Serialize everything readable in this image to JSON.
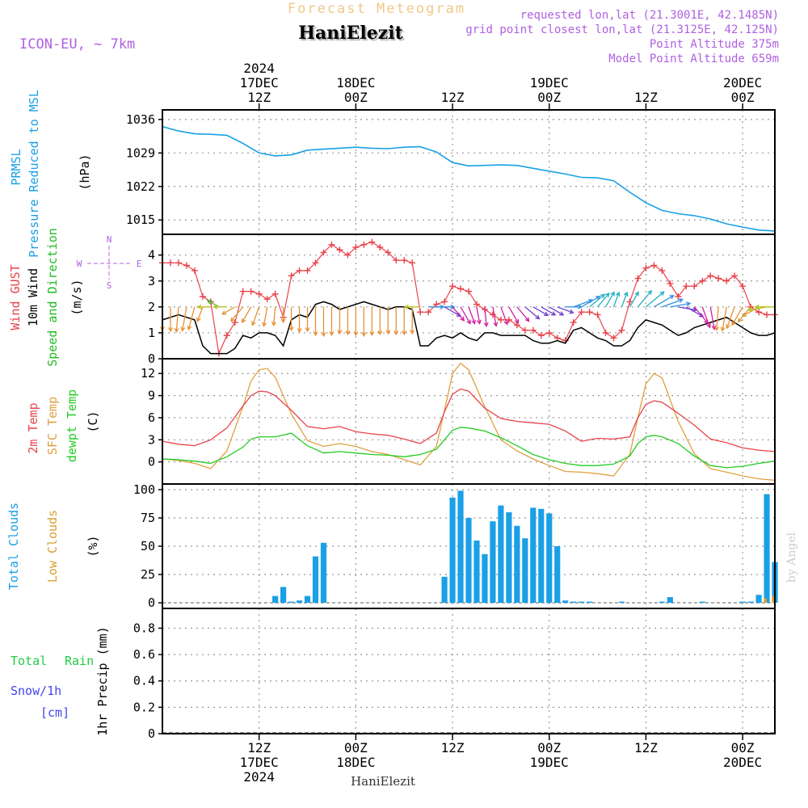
{
  "header": {
    "product": "Forecast Meteogram",
    "station": "HaniElezit",
    "model": "ICON-EU, ~ 7km",
    "requested": "requested lon,lat (21.3001E, 42.1485N)",
    "gridpoint": "grid point closest lon,lat (21.3125E, 42.125N)",
    "point_alt": "Point Altitude 375m",
    "model_alt": "Model Point Altitude 659m",
    "footer_station": "HaniElezit",
    "watermark": "by Angel"
  },
  "colors": {
    "pressure": "#1aa0e6",
    "gust": "#e8434b",
    "wind": "#000000",
    "wind_label": "#22bb22",
    "t2m": "#e8434b",
    "tsfc": "#e0a040",
    "dewpt": "#22cc22",
    "total_clouds": "#1aa0e6",
    "low_clouds": "#d9a030",
    "title": "#f0c888",
    "meta": "#b060e0",
    "rain": "#22cc44",
    "snow": "#4444ee"
  },
  "time_axis": {
    "top_labels": [
      {
        "h": 12,
        "lines": [
          "2024",
          "17DEC",
          "12Z"
        ]
      },
      {
        "h": 24,
        "lines": [
          "18DEC",
          "00Z"
        ]
      },
      {
        "h": 36,
        "lines": [
          "12Z"
        ]
      },
      {
        "h": 48,
        "lines": [
          "19DEC",
          "00Z"
        ]
      },
      {
        "h": 60,
        "lines": [
          "12Z"
        ]
      },
      {
        "h": 72,
        "lines": [
          "20DEC",
          "00Z"
        ]
      }
    ],
    "bottom_labels": [
      {
        "h": 12,
        "lines": [
          "12Z",
          "17DEC",
          "2024"
        ]
      },
      {
        "h": 24,
        "lines": [
          "00Z",
          "18DEC"
        ]
      },
      {
        "h": 36,
        "lines": [
          "12Z"
        ]
      },
      {
        "h": 48,
        "lines": [
          "00Z",
          "19DEC"
        ]
      },
      {
        "h": 60,
        "lines": [
          "12Z"
        ]
      },
      {
        "h": 72,
        "lines": [
          "00Z",
          "20DEC"
        ]
      }
    ]
  },
  "panels": {
    "pressure": {
      "labels": [
        "PRMSL",
        "Pressure Reduced to MSL",
        "(hPa)"
      ],
      "ticks": [
        "1036",
        "1029",
        "1022",
        "1015"
      ]
    },
    "wind": {
      "labels": [
        "Wind GUST",
        "10m Wind",
        "Speed and Direction",
        "(m/s)"
      ],
      "ticks": [
        "0",
        "1",
        "2",
        "3",
        "4"
      ],
      "compass": [
        "N",
        "W",
        "E",
        "S"
      ]
    },
    "temp": {
      "labels": [
        "2m Temp",
        "SFC Temp",
        "dewpt Temp",
        "(C)"
      ],
      "ticks": [
        "0",
        "3",
        "6",
        "9",
        "12"
      ]
    },
    "clouds": {
      "labels": [
        "Total Clouds",
        "Low Clouds",
        "(%)"
      ],
      "ticks": [
        "0",
        "25",
        "50",
        "75",
        "100"
      ]
    },
    "precip": {
      "labels": [
        "Total",
        "Rain",
        "Snow/1h",
        "[cm]",
        "1hr Precip (mm)"
      ],
      "ticks": [
        "0",
        "0.2",
        "0.4",
        "0.6",
        "0.8"
      ]
    }
  },
  "chart_data": [
    {
      "type": "line",
      "title": "Pressure Reduced to MSL",
      "ylabel": "hPa",
      "x_hours": [
        0,
        2,
        4,
        6,
        8,
        10,
        12,
        14,
        16,
        18,
        20,
        22,
        24,
        26,
        28,
        30,
        32,
        34,
        36,
        38,
        40,
        42,
        44,
        46,
        48,
        50,
        52,
        54,
        56,
        58,
        60,
        62,
        64,
        66,
        68,
        70,
        72,
        74,
        76
      ],
      "values": [
        1034.5,
        1033.6,
        1033.0,
        1032.9,
        1032.7,
        1031.0,
        1029.0,
        1028.4,
        1028.6,
        1029.6,
        1029.8,
        1030.0,
        1030.2,
        1030.0,
        1029.9,
        1030.2,
        1030.3,
        1029.2,
        1027.0,
        1026.3,
        1026.4,
        1026.5,
        1026.4,
        1025.8,
        1025.2,
        1024.6,
        1023.9,
        1023.8,
        1023.2,
        1020.8,
        1018.6,
        1017.0,
        1016.3,
        1015.9,
        1015.2,
        1014.2,
        1013.5,
        1012.9,
        1012.7
      ],
      "ylim": [
        1012,
        1038
      ]
    },
    {
      "type": "line",
      "title": "Wind GUST and 10m Wind Speed",
      "ylabel": "m/s",
      "x_hours": [
        0,
        1,
        2,
        3,
        4,
        5,
        6,
        7,
        8,
        9,
        10,
        11,
        12,
        13,
        14,
        15,
        16,
        17,
        18,
        19,
        20,
        21,
        22,
        23,
        24,
        25,
        26,
        27,
        28,
        29,
        30,
        31,
        32,
        33,
        34,
        35,
        36,
        37,
        38,
        39,
        40,
        41,
        42,
        43,
        44,
        45,
        46,
        47,
        48,
        49,
        50,
        51,
        52,
        53,
        54,
        55,
        56,
        57,
        58,
        59,
        60,
        61,
        62,
        63,
        64,
        65,
        66,
        67,
        68,
        69,
        70,
        71,
        72,
        73,
        74,
        75,
        76
      ],
      "series": [
        {
          "name": "Wind GUST",
          "values": [
            3.7,
            3.7,
            3.7,
            3.6,
            3.4,
            2.4,
            2.2,
            0.2,
            0.9,
            1.4,
            2.6,
            2.6,
            2.5,
            2.3,
            2.5,
            1.6,
            3.2,
            3.4,
            3.4,
            3.7,
            4.1,
            4.4,
            4.2,
            4.0,
            4.3,
            4.4,
            4.5,
            4.3,
            4.1,
            3.8,
            3.8,
            3.7,
            1.8,
            1.8,
            2.1,
            2.2,
            2.8,
            2.7,
            2.6,
            2.1,
            1.9,
            1.7,
            1.5,
            1.5,
            1.3,
            1.1,
            1.1,
            0.9,
            1.0,
            0.8,
            0.7,
            1.4,
            1.8,
            1.8,
            1.7,
            1.0,
            0.8,
            1.1,
            2.2,
            3.1,
            3.5,
            3.6,
            3.4,
            2.9,
            2.4,
            2.8,
            2.8,
            3.0,
            3.2,
            3.1,
            3.0,
            3.2,
            2.8,
            2.0,
            1.8,
            1.7,
            1.7
          ]
        },
        {
          "name": "10m Wind",
          "values": [
            1.5,
            1.6,
            1.7,
            1.6,
            1.5,
            0.5,
            0.2,
            0.2,
            0.2,
            0.4,
            0.9,
            0.8,
            1.0,
            1.0,
            0.9,
            0.5,
            1.5,
            1.7,
            1.6,
            2.1,
            2.2,
            2.1,
            1.9,
            2.0,
            2.1,
            2.2,
            2.1,
            2.0,
            1.9,
            2.0,
            2.0,
            1.9,
            0.5,
            0.5,
            0.8,
            0.9,
            0.8,
            1.0,
            0.8,
            0.7,
            1.0,
            1.0,
            0.9,
            0.9,
            0.9,
            0.9,
            0.7,
            0.6,
            0.6,
            0.7,
            0.6,
            1.1,
            1.2,
            1.0,
            0.8,
            0.7,
            0.5,
            0.5,
            0.7,
            1.2,
            1.5,
            1.4,
            1.3,
            1.1,
            0.9,
            1.0,
            1.2,
            1.3,
            1.4,
            1.5,
            1.6,
            1.4,
            1.2,
            1.0,
            0.9,
            0.9,
            1.0
          ]
        }
      ],
      "wind_dir_deg": [
        0,
        0,
        5,
        10,
        15,
        20,
        90,
        120,
        90,
        60,
        40,
        30,
        20,
        10,
        5,
        0,
        0,
        0,
        0,
        0,
        0,
        0,
        0,
        0,
        0,
        0,
        0,
        0,
        0,
        0,
        0,
        0,
        90,
        270,
        270,
        300,
        320,
        330,
        340,
        350,
        355,
        350,
        340,
        330,
        320,
        310,
        300,
        300,
        300,
        290,
        270,
        250,
        240,
        230,
        220,
        210,
        200,
        200,
        210,
        220,
        230,
        240,
        250,
        260,
        280,
        300,
        320,
        340,
        350,
        5,
        10,
        20,
        30,
        40,
        60,
        80,
        90
      ],
      "ylim": [
        0,
        4.8
      ]
    },
    {
      "type": "line",
      "title": "Temperatures",
      "ylabel": "C",
      "x_hours": [
        0,
        2,
        4,
        6,
        8,
        10,
        11,
        12,
        13,
        14,
        16,
        18,
        20,
        22,
        24,
        26,
        28,
        30,
        32,
        34,
        35,
        36,
        37,
        38,
        40,
        42,
        44,
        46,
        48,
        50,
        52,
        54,
        56,
        58,
        59,
        60,
        61,
        62,
        64,
        66,
        68,
        70,
        72,
        74,
        76
      ],
      "series": [
        {
          "name": "2m Temp",
          "values": [
            2.8,
            2.4,
            2.2,
            3.0,
            4.6,
            7.6,
            9.0,
            9.6,
            9.5,
            9.0,
            7.0,
            4.8,
            4.5,
            4.8,
            4.1,
            3.8,
            3.6,
            3.1,
            2.5,
            3.9,
            6.8,
            9.2,
            9.9,
            9.6,
            7.3,
            5.9,
            5.5,
            5.3,
            5.1,
            4.2,
            2.8,
            3.2,
            3.1,
            3.4,
            6.0,
            7.8,
            8.3,
            8.1,
            6.6,
            5.0,
            3.1,
            2.6,
            1.9,
            1.6,
            1.4
          ]
        },
        {
          "name": "SFC Temp",
          "values": [
            0.4,
            0.2,
            -0.2,
            -0.9,
            1.5,
            7.5,
            11.0,
            12.5,
            12.7,
            11.5,
            6.5,
            2.9,
            2.1,
            2.5,
            2.1,
            1.4,
            1.0,
            0.3,
            -0.4,
            2.1,
            7.0,
            12.0,
            13.4,
            12.5,
            7.5,
            3.0,
            1.5,
            0.4,
            -0.5,
            -1.3,
            -1.4,
            -1.6,
            -1.9,
            1.0,
            6.0,
            10.6,
            12.0,
            11.4,
            5.5,
            1.1,
            -0.9,
            -1.4,
            -1.9,
            -2.3,
            -2.5
          ]
        },
        {
          "name": "dewpt Temp",
          "values": [
            0.4,
            0.3,
            0.1,
            -0.2,
            0.7,
            2.0,
            3.1,
            3.4,
            3.4,
            3.4,
            3.9,
            2.2,
            1.2,
            1.4,
            1.2,
            1.0,
            0.9,
            0.7,
            1.0,
            1.7,
            3.0,
            4.3,
            4.7,
            4.6,
            4.2,
            3.3,
            2.2,
            1.0,
            0.3,
            -0.2,
            -0.5,
            -0.5,
            -0.3,
            0.8,
            2.5,
            3.4,
            3.6,
            3.4,
            2.5,
            0.8,
            -0.5,
            -0.8,
            -0.6,
            -0.2,
            0.1
          ]
        }
      ],
      "ylim": [
        -3,
        14
      ]
    },
    {
      "type": "bar",
      "title": "Total Clouds / Low Clouds",
      "ylabel": "%",
      "x_hours": [
        14,
        15,
        16,
        17,
        18,
        19,
        20,
        35,
        36,
        37,
        38,
        39,
        40,
        41,
        42,
        43,
        44,
        45,
        46,
        47,
        48,
        49,
        50,
        51,
        52,
        53,
        57,
        62,
        63,
        67,
        72,
        73,
        74,
        75,
        76
      ],
      "series": [
        {
          "name": "Total Clouds",
          "values": [
            6,
            14,
            1,
            2,
            6,
            41,
            53,
            23,
            93,
            99,
            75,
            55,
            43,
            72,
            86,
            80,
            68,
            57,
            84,
            83,
            79,
            50,
            2,
            1,
            1,
            1,
            1,
            1,
            5,
            1,
            1,
            1,
            7,
            96,
            36
          ]
        },
        {
          "name": "Low Clouds",
          "values": [
            0,
            0,
            0,
            0,
            0,
            0,
            0,
            0,
            0,
            0,
            0,
            0,
            0,
            0,
            0,
            0,
            0,
            0,
            0,
            0,
            0,
            0,
            0,
            0,
            0,
            0,
            0,
            0,
            0,
            0,
            0,
            0,
            0,
            4,
            6
          ]
        }
      ],
      "ylim": [
        -5,
        105
      ]
    },
    {
      "type": "bar",
      "title": "1hr Precip",
      "ylabel": "mm",
      "x_hours": [],
      "series": [
        {
          "name": "Total Rain",
          "values": []
        },
        {
          "name": "Snow/1h",
          "values": []
        }
      ],
      "ylim": [
        0,
        0.95
      ]
    }
  ]
}
